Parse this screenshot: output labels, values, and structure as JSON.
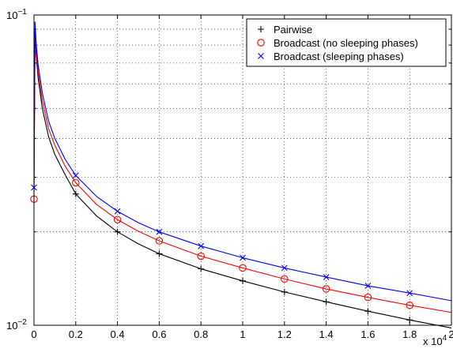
{
  "chart_data": {
    "type": "line",
    "title": "",
    "xlabel": "",
    "ylabel": "",
    "x_multiplier_label": "x 10",
    "x_multiplier_exp": "4",
    "y_scale": "log",
    "xlim": [
      0,
      20000
    ],
    "ylim": [
      0.01,
      0.1
    ],
    "grid": true,
    "legend_position": "top-right",
    "x_ticks": [
      0,
      2000,
      4000,
      6000,
      8000,
      10000,
      12000,
      14000,
      16000,
      18000,
      20000
    ],
    "x_tick_labels": [
      "0",
      "0.2",
      "0.4",
      "0.6",
      "0.8",
      "1",
      "1.2",
      "1.4",
      "1.6",
      "1.8",
      "2"
    ],
    "y_major_ticks": [
      {
        "value": 0.01,
        "base": "10",
        "exp": "−2"
      },
      {
        "value": 0.1,
        "base": "10",
        "exp": "−1"
      }
    ],
    "y_minor_ticks": [
      0.02,
      0.03,
      0.04,
      0.05,
      0.06,
      0.07,
      0.08,
      0.09
    ],
    "series": [
      {
        "name": "Pairwise",
        "color": "#000000",
        "marker": "plus",
        "curve": [
          [
            0,
            0.0285
          ],
          [
            50,
            0.089
          ],
          [
            100,
            0.075
          ],
          [
            200,
            0.0625
          ],
          [
            400,
            0.05
          ],
          [
            700,
            0.0405
          ],
          [
            1000,
            0.0355
          ],
          [
            1500,
            0.0305
          ],
          [
            2000,
            0.0265
          ],
          [
            3000,
            0.0225
          ],
          [
            4000,
            0.02
          ],
          [
            5000,
            0.0183
          ],
          [
            6000,
            0.017
          ],
          [
            8000,
            0.0152
          ],
          [
            10000,
            0.0139
          ],
          [
            12000,
            0.0128
          ],
          [
            14000,
            0.0119
          ],
          [
            16000,
            0.0111
          ],
          [
            18000,
            0.0104
          ],
          [
            20000,
            0.0098
          ]
        ],
        "markers": [
          [
            2000,
            0.0265
          ],
          [
            4000,
            0.02
          ],
          [
            6000,
            0.017
          ],
          [
            8000,
            0.0152
          ],
          [
            10000,
            0.0139
          ],
          [
            12000,
            0.0128
          ],
          [
            14000,
            0.0119
          ],
          [
            16000,
            0.0111
          ],
          [
            18000,
            0.0104
          ]
        ]
      },
      {
        "name": "Broadcast (no sleeping phases)",
        "color": "#ff0000",
        "marker": "circle",
        "curve": [
          [
            0,
            0.0255
          ],
          [
            50,
            0.09
          ],
          [
            100,
            0.078
          ],
          [
            200,
            0.0655
          ],
          [
            400,
            0.053
          ],
          [
            700,
            0.043
          ],
          [
            1000,
            0.038
          ],
          [
            1500,
            0.0325
          ],
          [
            2000,
            0.0288
          ],
          [
            3000,
            0.0245
          ],
          [
            4000,
            0.0219
          ],
          [
            5000,
            0.0201
          ],
          [
            6000,
            0.0187
          ],
          [
            8000,
            0.0167
          ],
          [
            10000,
            0.0153
          ],
          [
            12000,
            0.0141
          ],
          [
            14000,
            0.0131
          ],
          [
            16000,
            0.0123
          ],
          [
            18000,
            0.0116
          ],
          [
            20000,
            0.011
          ]
        ],
        "markers": [
          [
            0,
            0.0255
          ],
          [
            2000,
            0.0288
          ],
          [
            4000,
            0.0219
          ],
          [
            6000,
            0.0187
          ],
          [
            8000,
            0.0167
          ],
          [
            10000,
            0.0153
          ],
          [
            12000,
            0.0141
          ],
          [
            14000,
            0.0131
          ],
          [
            16000,
            0.0123
          ],
          [
            18000,
            0.0116
          ]
        ]
      },
      {
        "name": "Broadcast (sleeping phases)",
        "color": "#0000ff",
        "marker": "x",
        "curve": [
          [
            0,
            0.0278
          ],
          [
            50,
            0.095
          ],
          [
            100,
            0.082
          ],
          [
            200,
            0.069
          ],
          [
            400,
            0.056
          ],
          [
            700,
            0.0455
          ],
          [
            1000,
            0.04
          ],
          [
            1500,
            0.0342
          ],
          [
            2000,
            0.0304
          ],
          [
            3000,
            0.026
          ],
          [
            4000,
            0.0233
          ],
          [
            5000,
            0.0214
          ],
          [
            6000,
            0.02
          ],
          [
            8000,
            0.018
          ],
          [
            10000,
            0.0165
          ],
          [
            12000,
            0.0153
          ],
          [
            14000,
            0.0143
          ],
          [
            16000,
            0.0134
          ],
          [
            18000,
            0.0127
          ],
          [
            20000,
            0.012
          ]
        ],
        "markers": [
          [
            0,
            0.0278
          ],
          [
            2000,
            0.0304
          ],
          [
            4000,
            0.0233
          ],
          [
            6000,
            0.02
          ],
          [
            8000,
            0.018
          ],
          [
            10000,
            0.0165
          ],
          [
            12000,
            0.0153
          ],
          [
            14000,
            0.0143
          ],
          [
            16000,
            0.0134
          ],
          [
            18000,
            0.0127
          ]
        ]
      }
    ]
  }
}
